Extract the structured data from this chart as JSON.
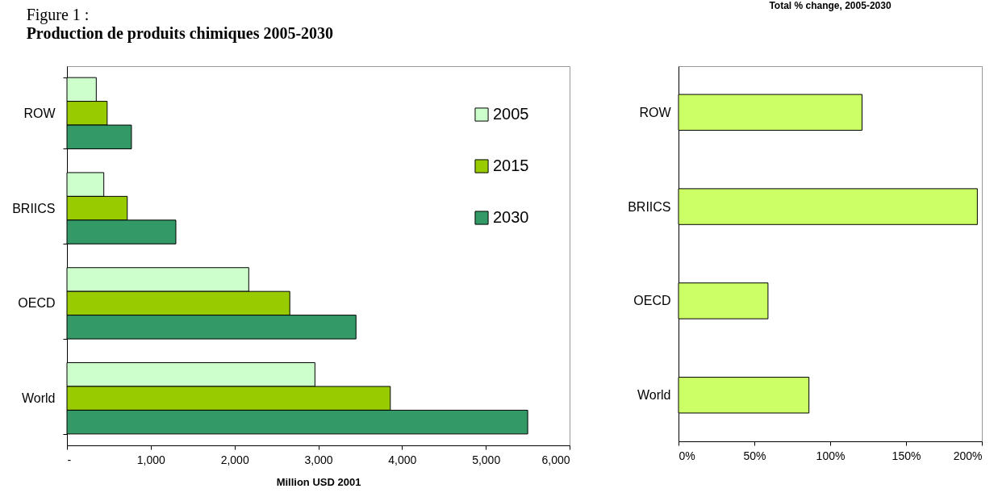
{
  "chart_data": [
    {
      "type": "bar",
      "orientation": "horizontal",
      "title": "Figure 1 :",
      "subtitle": "Production de produits chimiques 2005-2030",
      "xlabel": "Million USD 2001",
      "categories": [
        "ROW",
        "BRIICS",
        "OECD",
        "World"
      ],
      "series": [
        {
          "name": "2005",
          "color": "#ccffcc",
          "values": [
            350,
            440,
            2170,
            2960
          ]
        },
        {
          "name": "2015",
          "color": "#99cc00",
          "values": [
            480,
            720,
            2660,
            3860
          ]
        },
        {
          "name": "2030",
          "color": "#339966",
          "values": [
            770,
            1300,
            3450,
            5500
          ]
        }
      ],
      "xlim": [
        0,
        6000
      ],
      "xticks": [
        {
          "value": 0,
          "label": "-"
        },
        {
          "value": 1000,
          "label": "1,000"
        },
        {
          "value": 2000,
          "label": "2,000"
        },
        {
          "value": 3000,
          "label": "3,000"
        },
        {
          "value": 4000,
          "label": "4,000"
        },
        {
          "value": 5000,
          "label": "5,000"
        },
        {
          "value": 6000,
          "label": "6,000"
        }
      ],
      "legend": "top right"
    },
    {
      "type": "bar",
      "orientation": "horizontal",
      "title": "Total % change, 2005-2030",
      "categories": [
        "ROW",
        "BRIICS",
        "OECD",
        "World"
      ],
      "values": [
        121,
        197,
        59,
        86
      ],
      "color": "#ccff66",
      "xlim": [
        0,
        200
      ],
      "xticks": [
        {
          "value": 0,
          "label": "0%"
        },
        {
          "value": 50,
          "label": "50%"
        },
        {
          "value": 100,
          "label": "100%"
        },
        {
          "value": 150,
          "label": "150%"
        },
        {
          "value": 200,
          "label": "200%"
        }
      ]
    }
  ]
}
